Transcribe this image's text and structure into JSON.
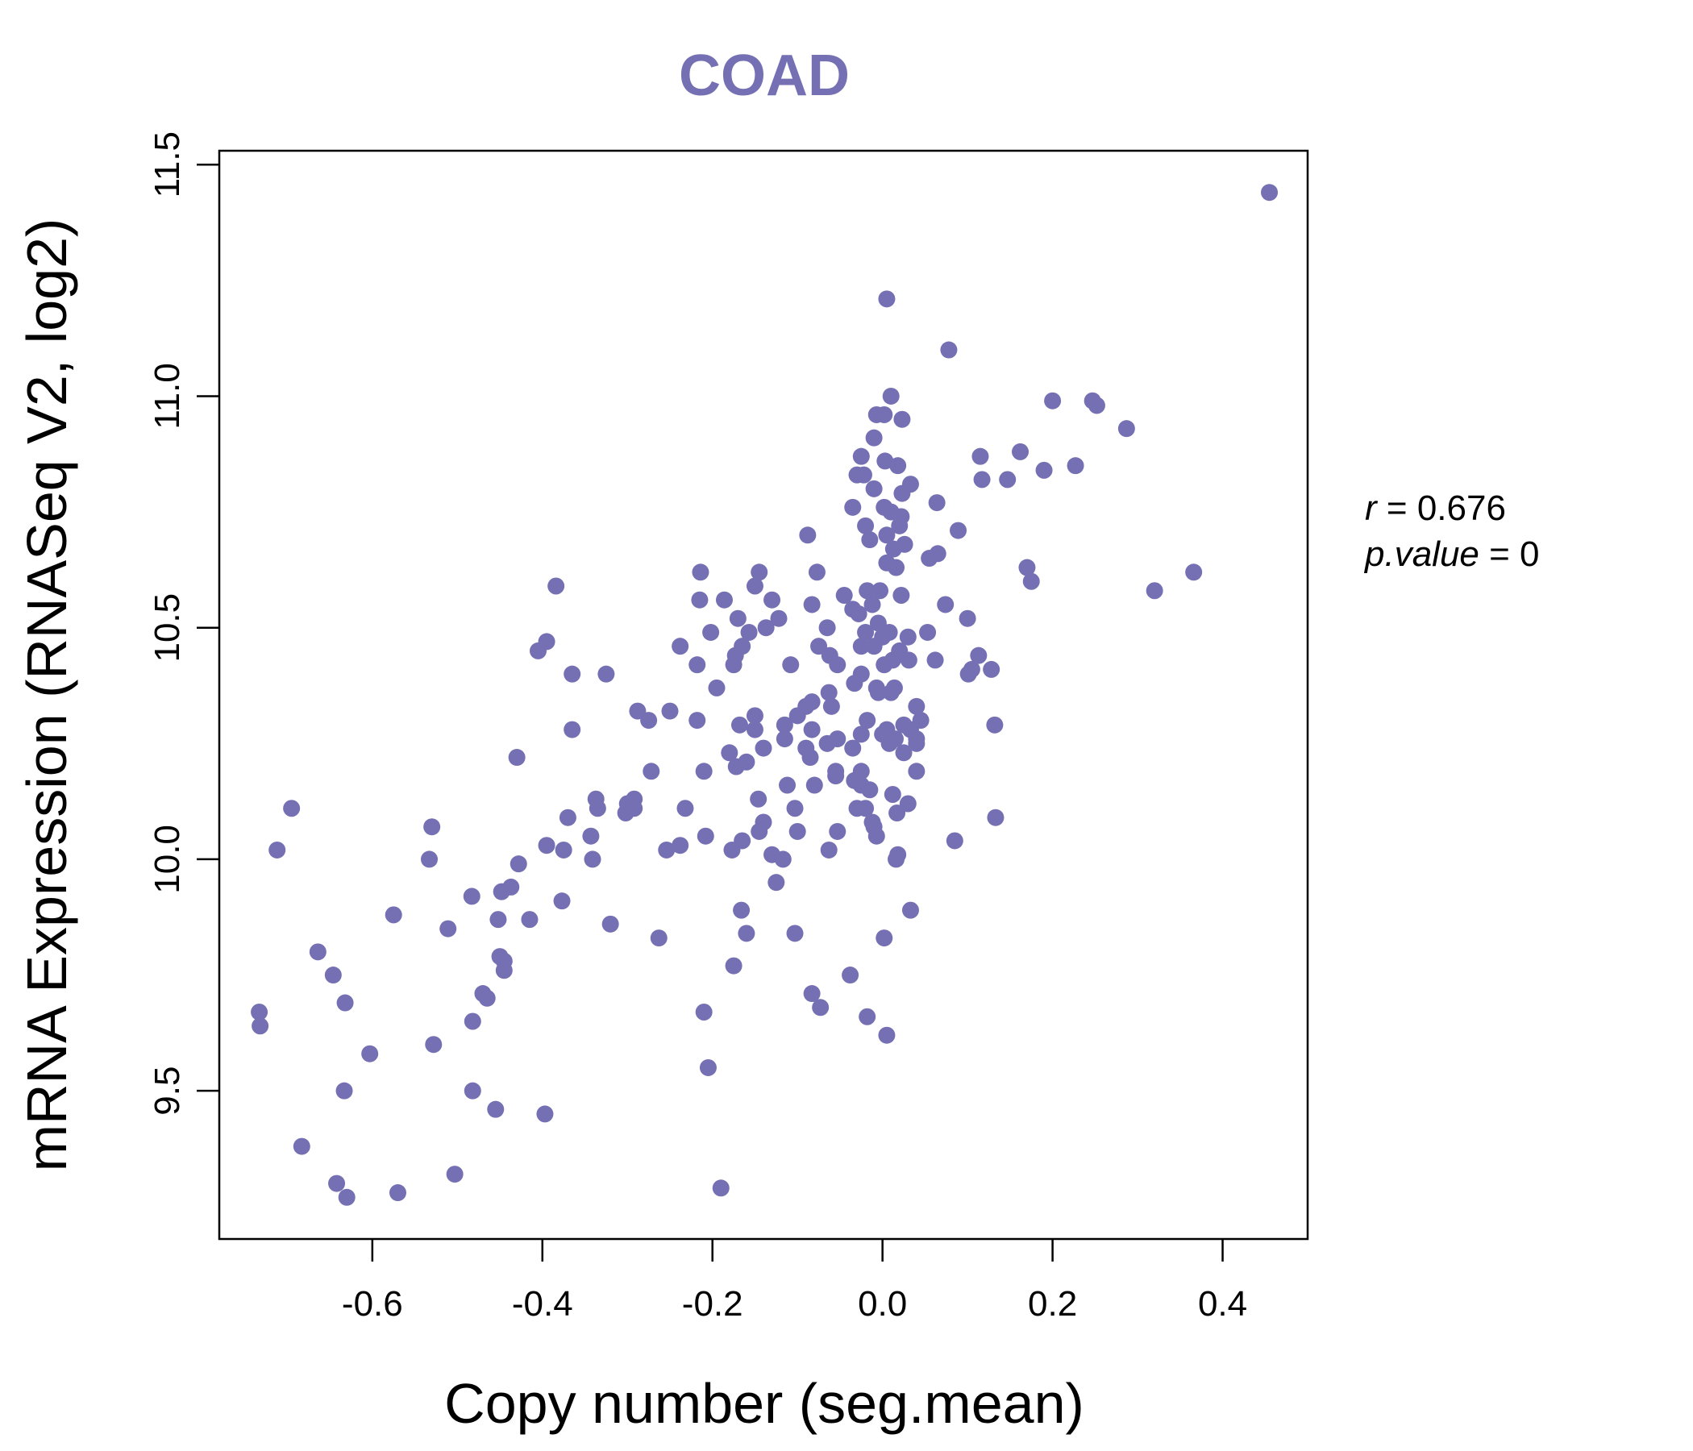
{
  "chart_data": {
    "type": "scatter",
    "title": "COAD",
    "xlabel": "Copy number (seg.mean)",
    "ylabel": "mRNA Expression (RNASeq V2, log2)",
    "xlim": [
      -0.78,
      0.5
    ],
    "ylim": [
      9.18,
      11.53
    ],
    "xticks": [
      "-0.6",
      "-0.4",
      "-0.2",
      "0.0",
      "0.2",
      "0.4"
    ],
    "yticks": [
      "9.5",
      "10.0",
      "10.5",
      "11.0",
      "11.5"
    ],
    "point_color": "#7570b3",
    "annotation": {
      "r": "0.676",
      "p_value": "0"
    },
    "points": [
      [
        0.455,
        11.44
      ],
      [
        0.005,
        11.21
      ],
      [
        0.078,
        11.1
      ],
      [
        0.01,
        11.0
      ],
      [
        0.2,
        10.99
      ],
      [
        0.247,
        10.99
      ],
      [
        0.252,
        10.98
      ],
      [
        -0.007,
        10.96
      ],
      [
        0.002,
        10.96
      ],
      [
        0.023,
        10.95
      ],
      [
        0.287,
        10.93
      ],
      [
        -0.01,
        10.91
      ],
      [
        0.162,
        10.88
      ],
      [
        -0.025,
        10.87
      ],
      [
        0.115,
        10.87
      ],
      [
        0.003,
        10.86
      ],
      [
        0.018,
        10.85
      ],
      [
        0.227,
        10.85
      ],
      [
        0.19,
        10.84
      ],
      [
        -0.03,
        10.83
      ],
      [
        -0.022,
        10.83
      ],
      [
        0.117,
        10.82
      ],
      [
        0.147,
        10.82
      ],
      [
        0.033,
        10.81
      ],
      [
        -0.01,
        10.8
      ],
      [
        0.023,
        10.79
      ],
      [
        0.064,
        10.77
      ],
      [
        0.002,
        10.76
      ],
      [
        -0.035,
        10.76
      ],
      [
        0.01,
        10.75
      ],
      [
        0.022,
        10.74
      ],
      [
        -0.02,
        10.72
      ],
      [
        0.02,
        10.72
      ],
      [
        0.089,
        10.71
      ],
      [
        -0.088,
        10.7
      ],
      [
        0.005,
        10.7
      ],
      [
        -0.015,
        10.69
      ],
      [
        0.026,
        10.68
      ],
      [
        0.013,
        10.67
      ],
      [
        0.065,
        10.66
      ],
      [
        0.055,
        10.65
      ],
      [
        0.005,
        10.64
      ],
      [
        0.016,
        10.63
      ],
      [
        0.17,
        10.63
      ],
      [
        -0.077,
        10.62
      ],
      [
        0.366,
        10.62
      ],
      [
        -0.214,
        10.62
      ],
      [
        -0.145,
        10.62
      ],
      [
        0.175,
        10.6
      ],
      [
        -0.384,
        10.59
      ],
      [
        -0.15,
        10.59
      ],
      [
        0.32,
        10.58
      ],
      [
        -0.018,
        10.58
      ],
      [
        -0.003,
        10.58
      ],
      [
        0.022,
        10.57
      ],
      [
        -0.045,
        10.57
      ],
      [
        -0.13,
        10.56
      ],
      [
        -0.186,
        10.56
      ],
      [
        -0.215,
        10.56
      ],
      [
        0.074,
        10.55
      ],
      [
        -0.012,
        10.55
      ],
      [
        -0.083,
        10.55
      ],
      [
        -0.035,
        10.54
      ],
      [
        -0.028,
        10.53
      ],
      [
        -0.17,
        10.52
      ],
      [
        -0.122,
        10.52
      ],
      [
        0.1,
        10.52
      ],
      [
        -0.005,
        10.51
      ],
      [
        -0.137,
        10.5
      ],
      [
        -0.065,
        10.5
      ],
      [
        -0.202,
        10.49
      ],
      [
        -0.157,
        10.49
      ],
      [
        0.053,
        10.49
      ],
      [
        0.008,
        10.49
      ],
      [
        -0.02,
        10.49
      ],
      [
        0.0,
        10.48
      ],
      [
        0.03,
        10.48
      ],
      [
        -0.395,
        10.47
      ],
      [
        -0.025,
        10.46
      ],
      [
        -0.238,
        10.46
      ],
      [
        -0.165,
        10.46
      ],
      [
        -0.075,
        10.46
      ],
      [
        -0.01,
        10.46
      ],
      [
        0.02,
        10.45
      ],
      [
        -0.405,
        10.45
      ],
      [
        0.113,
        10.44
      ],
      [
        -0.062,
        10.44
      ],
      [
        -0.173,
        10.44
      ],
      [
        0.012,
        10.43
      ],
      [
        0.031,
        10.43
      ],
      [
        0.062,
        10.43
      ],
      [
        -0.053,
        10.42
      ],
      [
        -0.108,
        10.42
      ],
      [
        -0.175,
        10.42
      ],
      [
        -0.218,
        10.42
      ],
      [
        0.002,
        10.42
      ],
      [
        0.128,
        10.41
      ],
      [
        -0.325,
        10.4
      ],
      [
        -0.365,
        10.4
      ],
      [
        0.101,
        10.4
      ],
      [
        0.105,
        10.41
      ],
      [
        -0.025,
        10.4
      ],
      [
        -0.033,
        10.38
      ],
      [
        -0.195,
        10.37
      ],
      [
        0.014,
        10.37
      ],
      [
        -0.007,
        10.37
      ],
      [
        -0.005,
        10.36
      ],
      [
        0.01,
        10.36
      ],
      [
        -0.063,
        10.36
      ],
      [
        -0.083,
        10.34
      ],
      [
        0.04,
        10.33
      ],
      [
        -0.288,
        10.32
      ],
      [
        -0.25,
        10.32
      ],
      [
        -0.09,
        10.33
      ],
      [
        -0.06,
        10.33
      ],
      [
        -0.1,
        10.31
      ],
      [
        -0.218,
        10.3
      ],
      [
        -0.15,
        10.31
      ],
      [
        -0.275,
        10.3
      ],
      [
        -0.018,
        10.3
      ],
      [
        0.045,
        10.3
      ],
      [
        0.025,
        10.29
      ],
      [
        -0.115,
        10.29
      ],
      [
        0.132,
        10.29
      ],
      [
        -0.168,
        10.29
      ],
      [
        -0.15,
        10.28
      ],
      [
        0.033,
        10.28
      ],
      [
        0.005,
        10.28
      ],
      [
        -0.365,
        10.28
      ],
      [
        -0.083,
        10.28
      ],
      [
        -0.025,
        10.27
      ],
      [
        0.0,
        10.27
      ],
      [
        0.015,
        10.26
      ],
      [
        -0.115,
        10.26
      ],
      [
        0.04,
        10.26
      ],
      [
        -0.053,
        10.26
      ],
      [
        -0.065,
        10.25
      ],
      [
        0.008,
        10.25
      ],
      [
        -0.035,
        10.24
      ],
      [
        0.04,
        10.25
      ],
      [
        -0.14,
        10.24
      ],
      [
        -0.09,
        10.24
      ],
      [
        0.025,
        10.23
      ],
      [
        -0.18,
        10.23
      ],
      [
        -0.43,
        10.22
      ],
      [
        -0.16,
        10.21
      ],
      [
        -0.085,
        10.22
      ],
      [
        -0.172,
        10.2
      ],
      [
        -0.21,
        10.19
      ],
      [
        -0.272,
        10.19
      ],
      [
        0.04,
        10.19
      ],
      [
        -0.055,
        10.19
      ],
      [
        -0.025,
        10.19
      ],
      [
        -0.055,
        10.18
      ],
      [
        -0.033,
        10.17
      ],
      [
        -0.112,
        10.16
      ],
      [
        -0.08,
        10.16
      ],
      [
        -0.025,
        10.16
      ],
      [
        -0.015,
        10.15
      ],
      [
        0.012,
        10.14
      ],
      [
        -0.337,
        10.13
      ],
      [
        -0.292,
        10.13
      ],
      [
        -0.3,
        10.12
      ],
      [
        -0.146,
        10.13
      ],
      [
        0.03,
        10.12
      ],
      [
        -0.292,
        10.11
      ],
      [
        -0.335,
        10.11
      ],
      [
        -0.232,
        10.11
      ],
      [
        -0.02,
        10.11
      ],
      [
        -0.103,
        10.11
      ],
      [
        -0.03,
        10.11
      ],
      [
        -0.302,
        10.1
      ],
      [
        0.017,
        10.1
      ],
      [
        -0.37,
        10.09
      ],
      [
        -0.14,
        10.08
      ],
      [
        -0.012,
        10.08
      ],
      [
        -0.01,
        10.07
      ],
      [
        -0.53,
        10.07
      ],
      [
        -0.007,
        10.05
      ],
      [
        -0.1,
        10.06
      ],
      [
        -0.145,
        10.06
      ],
      [
        -0.053,
        10.06
      ],
      [
        -0.343,
        10.05
      ],
      [
        -0.208,
        10.05
      ],
      [
        0.085,
        10.04
      ],
      [
        -0.165,
        10.04
      ],
      [
        -0.395,
        10.03
      ],
      [
        -0.238,
        10.03
      ],
      [
        0.133,
        10.09
      ],
      [
        -0.712,
        10.02
      ],
      [
        -0.177,
        10.02
      ],
      [
        -0.375,
        10.02
      ],
      [
        -0.254,
        10.02
      ],
      [
        -0.063,
        10.02
      ],
      [
        -0.13,
        10.01
      ],
      [
        0.018,
        10.01
      ],
      [
        0.016,
        10.0
      ],
      [
        -0.117,
        10.0
      ],
      [
        -0.533,
        10.0
      ],
      [
        -0.341,
        10.0
      ],
      [
        -0.428,
        9.99
      ],
      [
        -0.437,
        9.94
      ],
      [
        -0.448,
        9.93
      ],
      [
        -0.483,
        9.92
      ],
      [
        -0.377,
        9.91
      ],
      [
        -0.125,
        9.95
      ],
      [
        -0.166,
        9.89
      ],
      [
        0.033,
        9.89
      ],
      [
        -0.575,
        9.88
      ],
      [
        -0.415,
        9.87
      ],
      [
        -0.452,
        9.87
      ],
      [
        -0.32,
        9.86
      ],
      [
        -0.511,
        9.85
      ],
      [
        -0.103,
        9.84
      ],
      [
        -0.263,
        9.83
      ],
      [
        0.002,
        9.83
      ],
      [
        -0.16,
        9.84
      ],
      [
        -0.664,
        9.8
      ],
      [
        -0.45,
        9.79
      ],
      [
        -0.445,
        9.78
      ],
      [
        -0.175,
        9.77
      ],
      [
        -0.445,
        9.76
      ],
      [
        -0.646,
        9.75
      ],
      [
        -0.038,
        9.75
      ],
      [
        -0.083,
        9.71
      ],
      [
        -0.47,
        9.71
      ],
      [
        -0.465,
        9.7
      ],
      [
        -0.632,
        9.69
      ],
      [
        -0.073,
        9.68
      ],
      [
        -0.21,
        9.67
      ],
      [
        -0.733,
        9.67
      ],
      [
        -0.018,
        9.66
      ],
      [
        -0.482,
        9.65
      ],
      [
        -0.732,
        9.64
      ],
      [
        0.005,
        9.62
      ],
      [
        -0.528,
        9.6
      ],
      [
        -0.603,
        9.58
      ],
      [
        -0.205,
        9.55
      ],
      [
        -0.633,
        9.5
      ],
      [
        -0.482,
        9.5
      ],
      [
        -0.455,
        9.46
      ],
      [
        -0.397,
        9.45
      ],
      [
        -0.683,
        9.38
      ],
      [
        -0.503,
        9.32
      ],
      [
        -0.642,
        9.3
      ],
      [
        -0.57,
        9.28
      ],
      [
        -0.19,
        9.29
      ],
      [
        -0.63,
        9.27
      ],
      [
        -0.695,
        10.11
      ]
    ]
  }
}
